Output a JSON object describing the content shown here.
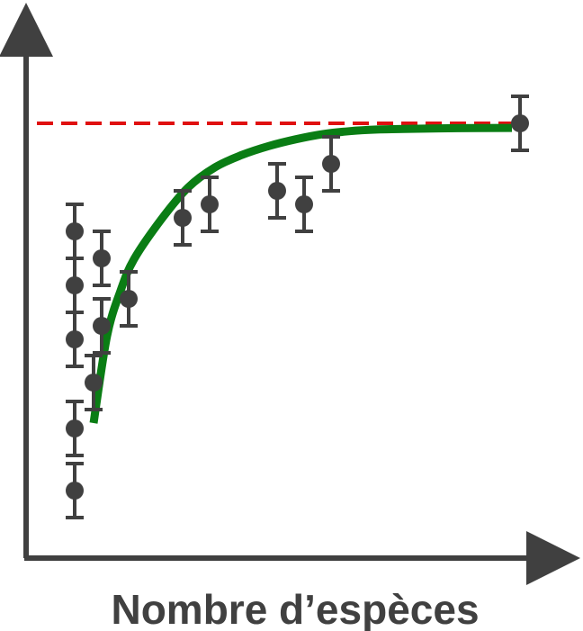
{
  "chart_data": {
    "type": "scatter",
    "title": "",
    "xlabel": "Nombre d’espèces",
    "ylabel": "",
    "xlim": [
      0,
      20
    ],
    "ylim": [
      0,
      20
    ],
    "grid": false,
    "legend": "none",
    "series": [
      {
        "type": "scatter",
        "x": [
          1.8,
          1.8,
          1.8,
          1.8,
          1.8,
          2.5,
          2.8,
          2.8,
          3.8,
          5.8,
          6.8,
          9.3,
          10.3,
          11.3,
          18.3
        ],
        "y": [
          2.5,
          4.8,
          8.1,
          10.1,
          12.1,
          6.5,
          8.6,
          11.1,
          9.6,
          12.6,
          13.1,
          13.6,
          13.1,
          14.6,
          16.1
        ],
        "yerr": [
          1.0,
          1.0,
          1.0,
          1.0,
          1.0,
          1.0,
          1.0,
          1.0,
          1.0,
          1.0,
          1.0,
          1.0,
          1.0,
          1.0,
          1.0
        ]
      },
      {
        "type": "line",
        "x": [
          2.5,
          3.0,
          3.5,
          4.0,
          5.0,
          6.0,
          7.0,
          8.0,
          9.0,
          10.0,
          11.0,
          12.0,
          13.0,
          14.0,
          16.0,
          18.0
        ],
        "y": [
          5.0,
          8.23,
          9.9,
          11.07,
          12.53,
          13.72,
          14.47,
          14.93,
          15.26,
          15.51,
          15.7,
          15.81,
          15.87,
          15.89,
          15.92,
          15.93
        ]
      },
      {
        "type": "reference-line",
        "y": 16.1,
        "x": [
          0.4,
          18.0
        ]
      }
    ],
    "colors": {
      "points": "#404040",
      "fit_line": "#0a7d14",
      "reference_line": "#e01010",
      "axes": "#404040"
    }
  }
}
